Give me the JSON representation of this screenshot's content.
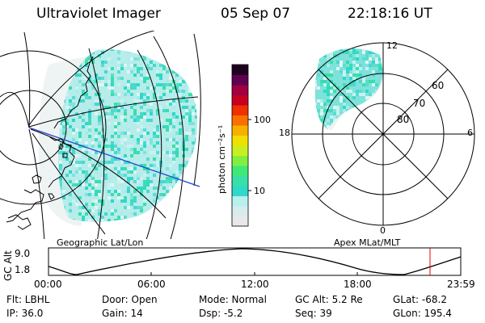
{
  "header": {
    "title": "Ultraviolet Imager",
    "date": "05 Sep 07",
    "time": "22:18:16 UT"
  },
  "colorbar": {
    "unit_label": "photon cm⁻²s⁻¹",
    "ticks": [
      "100",
      "10"
    ],
    "colors": [
      "#e8e8e8",
      "#d8ecec",
      "#b8f0f0",
      "#30d8c8",
      "#38e0a8",
      "#40e878",
      "#80f040",
      "#c8f020",
      "#f0e000",
      "#f8b000",
      "#f87000",
      "#f03000",
      "#c80020",
      "#a00040",
      "#600050",
      "#200020"
    ]
  },
  "geo_panel": {
    "caption": "Geographic Lat/Lon",
    "tile_colors": [
      "#30d8c8",
      "#48d8cc",
      "#5adcd0",
      "#7ce4dc",
      "#a8ecea",
      "#c8f2f2",
      "#e0f4f4",
      "#38e0a8"
    ]
  },
  "polar_panel": {
    "caption": "Apex  MLat/MLT",
    "mlt_labels": {
      "top": "12",
      "right": "6",
      "bottom": "0",
      "left": "18"
    },
    "lat_labels": [
      "60",
      "70",
      "80"
    ]
  },
  "altitude_plot": {
    "ylabel": "GC Alt",
    "y_ticks": [
      "9.0",
      "1.8"
    ],
    "x_ticks": [
      "00:00",
      "06:00",
      "12:00",
      "18:00",
      "23:59"
    ],
    "marker_color": "#e00000"
  },
  "info": {
    "flt": "Flt: LBHL",
    "ip": "IP: 36.0",
    "door": "Door: Open",
    "gain": "Gain: 14",
    "mode": "Mode: Normal",
    "dsp": "Dsp:   -5.2",
    "gcalt": "GC Alt: 5.2 Re",
    "seq": "Seq: 39",
    "glat": "GLat: -68.2",
    "glon": "GLon: 195.4"
  }
}
